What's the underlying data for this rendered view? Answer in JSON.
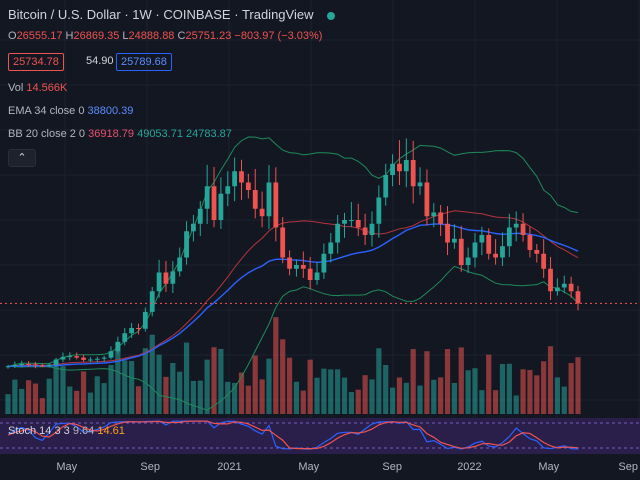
{
  "header": {
    "symbol": "Bitcoin / U.S. Dollar",
    "interval": "1W",
    "exchange": "COINBASE",
    "source": "TradingView"
  },
  "ohlc": {
    "o": "26555.17",
    "h": "26869.35",
    "l": "24888.88",
    "c": "25751.23",
    "change": "−803.97 (−3.03%)"
  },
  "quote": {
    "bid": "25734.78",
    "spread": "54.90",
    "ask": "25789.68"
  },
  "indicators": {
    "vol": {
      "label": "Vol",
      "value": "14.566K"
    },
    "ema": {
      "label": "EMA 34 close 0",
      "value": "38800.39"
    },
    "bb": {
      "label": "BB 20 close 2 0",
      "basis": "36918.79",
      "upper": "49053.71",
      "lower": "24783.87"
    },
    "stoch": {
      "label": "Stoch 14 3 3",
      "k": "9.64",
      "d": "14.61"
    }
  },
  "x_axis": [
    "May",
    "Sep",
    "2021",
    "May",
    "Sep",
    "2022",
    "May",
    "Sep"
  ],
  "colors": {
    "up": "#26a69a",
    "down": "#ef5350",
    "ema": "#2962ff",
    "bb_band": "#1e8c5a",
    "bb_basis": "#b7343c",
    "stoch_k": "#2962ff",
    "stoch_d": "#ef5350",
    "background": "#131722"
  },
  "chart_data": {
    "type": "line",
    "title": "Bitcoin / U.S. Dollar · 1W · COINBASE",
    "weekly_close_approx": [
      9000,
      9300,
      9600,
      9500,
      9200,
      9100,
      9400,
      10800,
      11500,
      11700,
      11300,
      10700,
      10800,
      11000,
      11300,
      13000,
      15500,
      17800,
      19200,
      19000,
      23500,
      29000,
      34000,
      31000,
      34300,
      38000,
      45000,
      47000,
      51000,
      57000,
      48000,
      55000,
      57000,
      61000,
      58000,
      56000,
      51000,
      49000,
      58000,
      46000,
      38000,
      35000,
      36000,
      35000,
      32000,
      34000,
      39000,
      42000,
      47000,
      48000,
      48000,
      46000,
      44000,
      47000,
      54000,
      60000,
      63000,
      61000,
      64000,
      57000,
      58000,
      49000,
      50000,
      47000,
      42000,
      43000,
      36000,
      38000,
      42000,
      44000,
      39000,
      38000,
      41000,
      46000,
      47000,
      44000,
      40000,
      39000,
      35000,
      29000,
      30000,
      31000,
      29000,
      25751
    ]
  }
}
